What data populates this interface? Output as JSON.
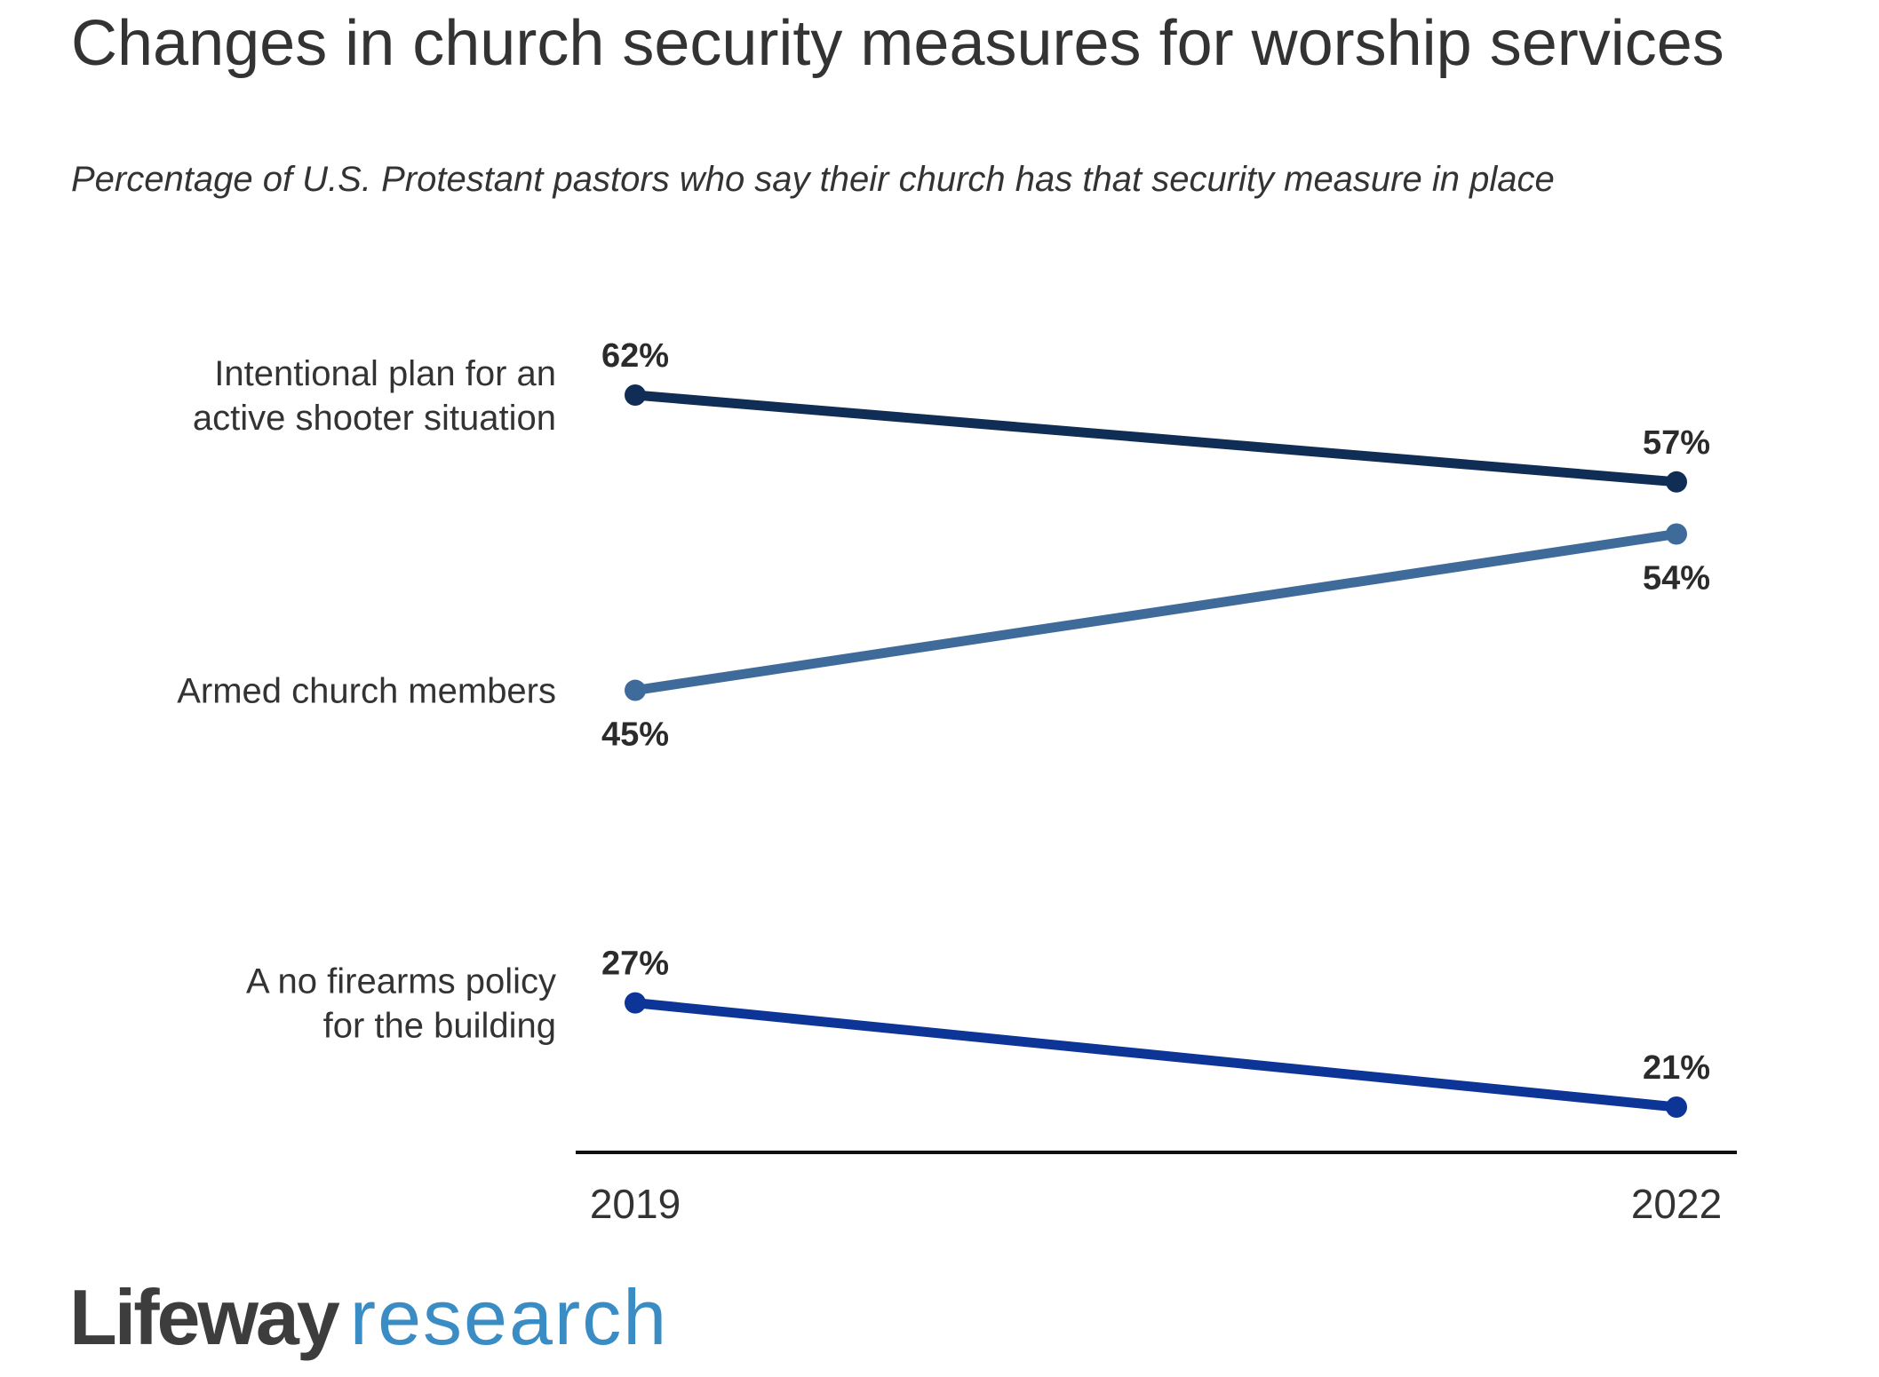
{
  "chart_data": {
    "type": "line",
    "title": "Changes in church security measures for worship services",
    "subtitle": "Percentage of U.S. Protestant pastors who say their church has that security measure in place",
    "x": [
      "2019",
      "2022"
    ],
    "series": [
      {
        "name": "Intentional plan for an active shooter situation",
        "label_lines": [
          "Intentional plan for an",
          "active shooter situation"
        ],
        "values": [
          62,
          57
        ],
        "value_labels": [
          "62%",
          "57%"
        ],
        "label_positions": [
          "above",
          "above"
        ],
        "color": "#0f2d55"
      },
      {
        "name": "Armed church members",
        "label_lines": [
          "Armed church members"
        ],
        "values": [
          45,
          54
        ],
        "value_labels": [
          "45%",
          "54%"
        ],
        "label_positions": [
          "below",
          "below"
        ],
        "color": "#3f6b9b"
      },
      {
        "name": "A no firearms policy for the building",
        "label_lines": [
          "A no firearms policy",
          "for the building"
        ],
        "values": [
          27,
          21
        ],
        "value_labels": [
          "27%",
          "21%"
        ],
        "label_positions": [
          "above",
          "above"
        ],
        "color": "#0d3597"
      }
    ],
    "ylim": [
      18,
      64
    ],
    "grid": false,
    "legend": "none"
  },
  "logo": {
    "brand": "Lifeway",
    "sub": "research"
  }
}
